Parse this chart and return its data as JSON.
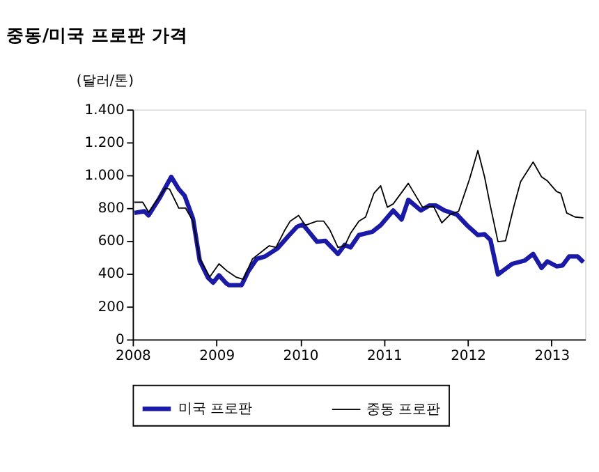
{
  "chart_data": {
    "type": "line",
    "title": "중동/미국 프로판 가격",
    "ylabel": "(달러/톤)",
    "xlim": [
      2008,
      2013.4
    ],
    "xticks": [
      2008,
      2009,
      2010,
      2011,
      2012,
      2013
    ],
    "ylim": [
      0,
      1400
    ],
    "yticks": [
      0,
      200,
      400,
      600,
      800,
      {
        "value": 1000,
        "label": "1.000"
      },
      {
        "value": 1200,
        "label": "1.200"
      },
      {
        "value": 1400,
        "label": "1.400"
      }
    ],
    "grid": false,
    "legend": "bottom",
    "marker": "none",
    "line_style": "solid",
    "series": [
      {
        "name": "미국 프로판",
        "color": "#1a1aa6",
        "x": [
          2008.02,
          2008.08,
          2008.14,
          2008.19,
          2008.32,
          2008.46,
          2008.55,
          2008.62,
          2008.72,
          2008.8,
          2008.9,
          2008.96,
          2009.03,
          2009.12,
          2009.15,
          2009.3,
          2009.38,
          2009.48,
          2009.58,
          2009.73,
          2009.86,
          2009.96,
          2010.03,
          2010.08,
          2010.2,
          2010.3,
          2010.45,
          2010.53,
          2010.6,
          2010.7,
          2010.86,
          2010.96,
          2011.11,
          2011.21,
          2011.29,
          2011.44,
          2011.54,
          2011.62,
          2011.72,
          2011.87,
          2011.99,
          2012.12,
          2012.2,
          2012.27,
          2012.36,
          2012.53,
          2012.68,
          2012.78,
          2012.88,
          2012.95,
          2013.06,
          2013.13,
          2013.21,
          2013.31,
          2013.38
        ],
        "values": [
          770,
          775,
          780,
          755,
          860,
          990,
          915,
          875,
          735,
          480,
          375,
          345,
          390,
          340,
          330,
          330,
          415,
          490,
          505,
          555,
          630,
          685,
          700,
          670,
          595,
          600,
          520,
          575,
          560,
          635,
          655,
          695,
          785,
          730,
          850,
          785,
          815,
          815,
          785,
          760,
          695,
          635,
          640,
          605,
          395,
          460,
          480,
          520,
          435,
          475,
          445,
          450,
          505,
          505,
          470
        ]
      },
      {
        "name": "중동 프로판",
        "color": "#000000",
        "x": [
          2008.02,
          2008.12,
          2008.19,
          2008.39,
          2008.44,
          2008.55,
          2008.63,
          2008.72,
          2008.8,
          2008.92,
          2009.03,
          2009.13,
          2009.23,
          2009.32,
          2009.43,
          2009.53,
          2009.63,
          2009.71,
          2009.81,
          2009.88,
          2009.98,
          2010.06,
          2010.2,
          2010.28,
          2010.35,
          2010.45,
          2010.53,
          2010.6,
          2010.7,
          2010.78,
          2010.88,
          2010.96,
          2011.04,
          2011.11,
          2011.29,
          2011.46,
          2011.59,
          2011.69,
          2011.79,
          2011.89,
          2012.02,
          2012.12,
          2012.2,
          2012.27,
          2012.36,
          2012.45,
          2012.55,
          2012.63,
          2012.78,
          2012.88,
          2012.95,
          2013.06,
          2013.11,
          2013.18,
          2013.28,
          2013.38
        ],
        "values": [
          835,
          835,
          775,
          920,
          915,
          800,
          800,
          720,
          490,
          380,
          460,
          415,
          380,
          365,
          490,
          530,
          570,
          560,
          660,
          720,
          755,
          695,
          720,
          720,
          670,
          560,
          570,
          645,
          720,
          745,
          890,
          935,
          805,
          825,
          950,
          805,
          810,
          710,
          760,
          780,
          975,
          1150,
          990,
          810,
          595,
          600,
          810,
          960,
          1080,
          990,
          965,
          900,
          890,
          770,
          745,
          740
        ]
      }
    ]
  }
}
